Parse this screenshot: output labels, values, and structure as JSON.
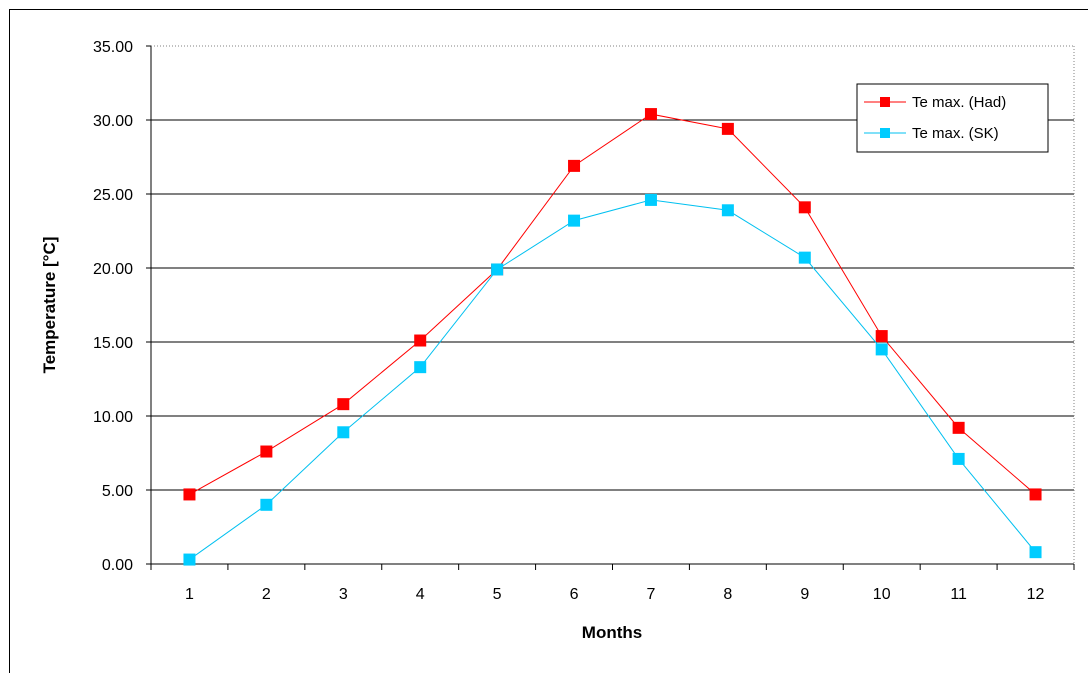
{
  "chart_data": {
    "type": "line",
    "title": "",
    "xlabel": "Months",
    "ylabel": "Temperature [°C]",
    "categories": [
      "1",
      "2",
      "3",
      "4",
      "5",
      "6",
      "7",
      "8",
      "9",
      "10",
      "11",
      "12"
    ],
    "y_tick_labels": [
      "0.00",
      "5.00",
      "10.00",
      "15.00",
      "20.00",
      "25.00",
      "30.00",
      "35.00"
    ],
    "ylim": [
      0,
      35
    ],
    "grid": "horizontal major lines",
    "legend_position": "top-right",
    "series": [
      {
        "name": "Te max. (Had)",
        "color": "#ff0000",
        "marker_color": "#ff0000",
        "marker": "square",
        "values": [
          4.7,
          7.6,
          10.8,
          15.1,
          19.9,
          26.9,
          30.4,
          29.4,
          24.1,
          15.4,
          9.2,
          4.7
        ]
      },
      {
        "name": "Te max. (SK)",
        "color": "#00c0f0",
        "marker_color": "#00ccff",
        "marker": "square",
        "values": [
          0.3,
          4.0,
          8.9,
          13.3,
          19.9,
          23.2,
          24.6,
          23.9,
          20.7,
          14.5,
          7.1,
          0.8
        ]
      }
    ]
  }
}
